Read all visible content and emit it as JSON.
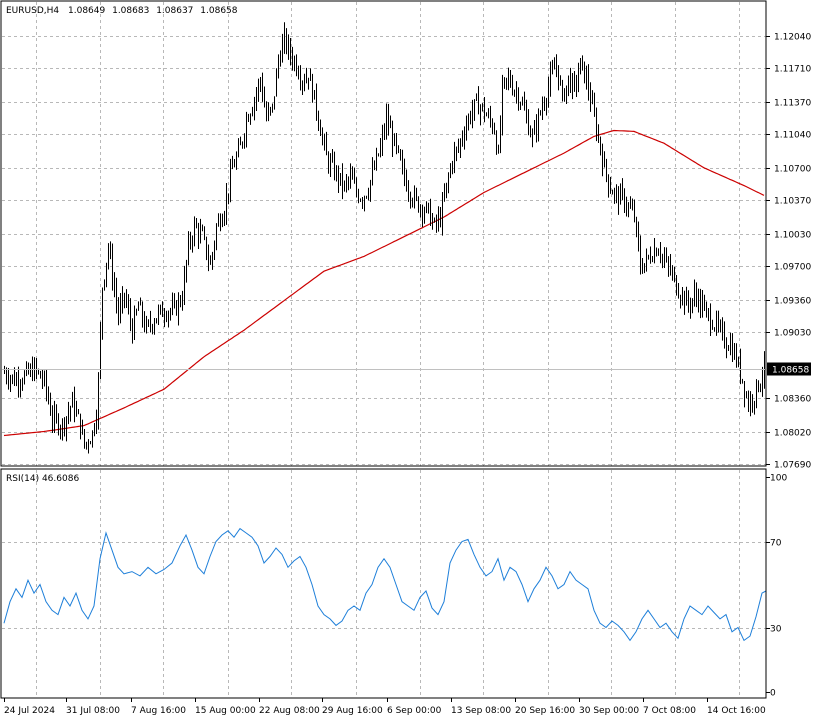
{
  "chart_data": [
    {
      "type": "ohlc",
      "title": "EURUSD,H4",
      "ohlc_readout": [
        "1.08649",
        "1.08683",
        "1.08637",
        "1.08658"
      ],
      "current_price_label": "1.08658",
      "current_price": 1.08658,
      "ylim": [
        1.0769,
        1.1237
      ],
      "y_tick_labels": [
        "1.12040",
        "1.11710",
        "1.11370",
        "1.11040",
        "1.10700",
        "1.10370",
        "1.10030",
        "1.09700",
        "1.09360",
        "1.09030",
        "1.08360",
        "1.08020",
        "1.07690"
      ],
      "x_tick_labels": [
        "24 Jul 2024",
        "31 Jul 08:00",
        "7 Aug 16:00",
        "15 Aug 00:00",
        "22 Aug 08:00",
        "29 Aug 16:00",
        "6 Sep 00:00",
        "13 Sep 08:00",
        "20 Sep 16:00",
        "30 Sep 00:00",
        "7 Oct 08:00",
        "14 Oct 16:00"
      ],
      "grid": true,
      "price_path": [
        [
          0,
          1.0862
        ],
        [
          10,
          1.0855
        ],
        [
          20,
          1.0858
        ],
        [
          30,
          1.0865
        ],
        [
          40,
          1.0852
        ],
        [
          48,
          1.0815
        ],
        [
          58,
          1.0808
        ],
        [
          68,
          1.0832
        ],
        [
          76,
          1.0808
        ],
        [
          80,
          1.0788
        ],
        [
          88,
          1.08
        ],
        [
          93,
          1.083
        ],
        [
          98,
          1.095
        ],
        [
          104,
          1.099
        ],
        [
          108,
          1.096
        ],
        [
          114,
          1.092
        ],
        [
          120,
          1.094
        ],
        [
          128,
          1.0905
        ],
        [
          134,
          1.093
        ],
        [
          142,
          1.0905
        ],
        [
          152,
          1.092
        ],
        [
          160,
          1.0925
        ],
        [
          170,
          1.0925
        ],
        [
          178,
          1.094
        ],
        [
          184,
          1.099
        ],
        [
          190,
          1.101
        ],
        [
          198,
          1.1
        ],
        [
          206,
          1.097
        ],
        [
          212,
          1.101
        ],
        [
          220,
          1.103
        ],
        [
          228,
          1.107
        ],
        [
          236,
          1.109
        ],
        [
          242,
          1.112
        ],
        [
          250,
          1.114
        ],
        [
          256,
          1.116
        ],
        [
          262,
          1.112
        ],
        [
          268,
          1.113
        ],
        [
          274,
          1.118
        ],
        [
          280,
          1.12
        ],
        [
          286,
          1.1185
        ],
        [
          292,
          1.1175
        ],
        [
          298,
          1.116
        ],
        [
          304,
          1.1165
        ],
        [
          310,
          1.114
        ],
        [
          316,
          1.111
        ],
        [
          322,
          1.108
        ],
        [
          328,
          1.107
        ],
        [
          334,
          1.106
        ],
        [
          340,
          1.105
        ],
        [
          346,
          1.106
        ],
        [
          352,
          1.1045
        ],
        [
          358,
          1.104
        ],
        [
          364,
          1.105
        ],
        [
          370,
          1.107
        ],
        [
          376,
          1.109
        ],
        [
          382,
          1.112
        ],
        [
          388,
          1.11
        ],
        [
          394,
          1.108
        ],
        [
          400,
          1.106
        ],
        [
          406,
          1.1045
        ],
        [
          412,
          1.1035
        ],
        [
          418,
          1.103
        ],
        [
          424,
          1.1025
        ],
        [
          430,
          1.101
        ],
        [
          436,
          1.102
        ],
        [
          442,
          1.105
        ],
        [
          448,
          1.108
        ],
        [
          454,
          1.109
        ],
        [
          460,
          1.111
        ],
        [
          466,
          1.1125
        ],
        [
          472,
          1.1135
        ],
        [
          478,
          1.113
        ],
        [
          484,
          1.112
        ],
        [
          490,
          1.111
        ],
        [
          494,
          1.108
        ],
        [
          498,
          1.115
        ],
        [
          504,
          1.116
        ],
        [
          510,
          1.115
        ],
        [
          516,
          1.114
        ],
        [
          522,
          1.112
        ],
        [
          528,
          1.11
        ],
        [
          534,
          1.112
        ],
        [
          540,
          1.114
        ],
        [
          546,
          1.116
        ],
        [
          552,
          1.1175
        ],
        [
          558,
          1.114
        ],
        [
          564,
          1.116
        ],
        [
          570,
          1.115
        ],
        [
          576,
          1.1175
        ],
        [
          582,
          1.116
        ],
        [
          588,
          1.113
        ],
        [
          594,
          1.11
        ],
        [
          600,
          1.107
        ],
        [
          606,
          1.105
        ],
        [
          612,
          1.104
        ],
        [
          618,
          1.104
        ],
        [
          624,
          1.103
        ],
        [
          630,
          1.102
        ],
        [
          636,
          1.097
        ],
        [
          642,
          1.0975
        ],
        [
          648,
          1.0985
        ],
        [
          654,
          1.099
        ],
        [
          660,
          1.0975
        ],
        [
          666,
          1.0965
        ],
        [
          672,
          1.095
        ],
        [
          678,
          1.094
        ],
        [
          684,
          1.093
        ],
        [
          690,
          1.094
        ],
        [
          696,
          1.0935
        ],
        [
          702,
          1.092
        ],
        [
          708,
          1.0915
        ],
        [
          714,
          1.0905
        ],
        [
          720,
          1.0895
        ],
        [
          726,
          1.089
        ],
        [
          732,
          1.0875
        ],
        [
          738,
          1.0855
        ],
        [
          744,
          1.083
        ],
        [
          750,
          1.084
        ],
        [
          756,
          1.0855
        ],
        [
          760,
          1.0866
        ]
      ],
      "moving_average": {
        "color": "#cc0000",
        "path": [
          [
            0,
            1.0798
          ],
          [
            40,
            1.0802
          ],
          [
            80,
            1.0808
          ],
          [
            120,
            1.0826
          ],
          [
            160,
            1.0845
          ],
          [
            200,
            1.0878
          ],
          [
            240,
            1.0905
          ],
          [
            280,
            1.0935
          ],
          [
            320,
            1.0965
          ],
          [
            360,
            1.098
          ],
          [
            400,
            1.1
          ],
          [
            440,
            1.102
          ],
          [
            480,
            1.1045
          ],
          [
            520,
            1.1065
          ],
          [
            560,
            1.1085
          ],
          [
            590,
            1.1102
          ],
          [
            610,
            1.1108
          ],
          [
            630,
            1.1107
          ],
          [
            660,
            1.1095
          ],
          [
            700,
            1.107
          ],
          [
            740,
            1.1052
          ],
          [
            760,
            1.1042
          ]
        ]
      },
      "bar_color": "#000000"
    },
    {
      "type": "line",
      "title": "RSI(14) 46.6086",
      "ylim": [
        0,
        100
      ],
      "y_tick_labels": [
        "100",
        "70",
        "30",
        "0"
      ],
      "levels": [
        70,
        30
      ],
      "series_color": "#1e7fd9",
      "x": [
        0,
        6,
        12,
        18,
        24,
        30,
        36,
        42,
        48,
        54,
        60,
        66,
        72,
        78,
        84,
        90,
        96,
        102,
        108,
        114,
        120,
        128,
        136,
        144,
        152,
        160,
        168,
        176,
        182,
        188,
        194,
        200,
        206,
        212,
        218,
        224,
        230,
        236,
        242,
        248,
        254,
        260,
        266,
        272,
        278,
        284,
        290,
        296,
        302,
        308,
        314,
        320,
        326,
        332,
        338,
        344,
        350,
        356,
        362,
        368,
        374,
        380,
        386,
        392,
        398,
        404,
        410,
        416,
        422,
        428,
        434,
        440,
        446,
        452,
        458,
        464,
        470,
        476,
        482,
        488,
        494,
        500,
        506,
        512,
        518,
        524,
        530,
        536,
        542,
        548,
        554,
        560,
        566,
        572,
        578,
        584,
        590,
        596,
        602,
        608,
        614,
        620,
        626,
        632,
        638,
        644,
        650,
        656,
        662,
        668,
        674,
        680,
        686,
        692,
        698,
        704,
        710,
        716,
        722,
        728,
        734,
        740,
        746,
        752,
        758,
        762
      ],
      "values": [
        32,
        42,
        48,
        44,
        52,
        46,
        50,
        42,
        38,
        36,
        44,
        40,
        46,
        38,
        34,
        40,
        62,
        74,
        66,
        58,
        55,
        56,
        54,
        58,
        55,
        57,
        60,
        68,
        73,
        66,
        58,
        55,
        63,
        70,
        73,
        75,
        72,
        76,
        74,
        72,
        68,
        60,
        63,
        67,
        64,
        58,
        61,
        63,
        58,
        50,
        40,
        36,
        34,
        31,
        33,
        38,
        40,
        38,
        46,
        50,
        58,
        62,
        58,
        50,
        42,
        40,
        38,
        44,
        47,
        39,
        36,
        42,
        60,
        66,
        70,
        71,
        64,
        58,
        54,
        56,
        62,
        52,
        58,
        56,
        50,
        42,
        48,
        52,
        58,
        54,
        48,
        50,
        56,
        52,
        50,
        48,
        38,
        32,
        30,
        33,
        31,
        28,
        24,
        28,
        34,
        38,
        34,
        30,
        32,
        28,
        25,
        34,
        40,
        38,
        36,
        40,
        37,
        34,
        36,
        28,
        30,
        24,
        26,
        35,
        46,
        47
      ]
    }
  ]
}
